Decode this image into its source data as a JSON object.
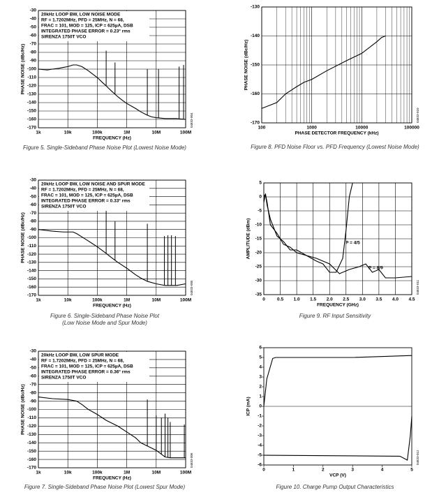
{
  "chart_data": [
    {
      "type": "line",
      "caption": [
        "Figure 5. Single-Sideband Phase Noise Plot (Lowest Noise Mode)"
      ],
      "code": "04833-004",
      "xlabel": "FREQUENCY (Hz)",
      "ylabel": "PHASE NOISE (dBc/Hz)",
      "xscale": "log",
      "grid": true,
      "annotations": [
        "20kHz LOOP BW, LOW NOISE MODE",
        "RF = 1.7202MHz, PFD = 25MHz, N = 68,",
        "FRAC = 101, MOD = 125, ICP = 625µA, DSB",
        "INTEGRATED PHASE ERROR = 0.23° rms",
        "SIRENZA 1750T VCO"
      ],
      "xlim": [
        1000,
        100000000
      ],
      "ylim": [
        -170,
        -30
      ],
      "xticks": [
        {
          "value": 1000,
          "label": "1k"
        },
        {
          "value": 10000,
          "label": "10k"
        },
        {
          "value": 100000,
          "label": "100k"
        },
        {
          "value": 1000000,
          "label": "1M"
        },
        {
          "value": 10000000,
          "label": "10M"
        },
        {
          "value": 100000000,
          "label": "100M"
        }
      ],
      "yticks": [
        -30,
        -40,
        -50,
        -60,
        -70,
        -80,
        -90,
        -100,
        -110,
        -120,
        -130,
        -140,
        -150,
        -160,
        -170
      ],
      "x": [
        1000,
        2000,
        3000,
        5000,
        7000,
        10000,
        15000,
        20000,
        30000,
        50000,
        70000,
        100000,
        150000,
        200000,
        300000,
        500000,
        700000,
        1000000,
        2000000,
        3000000,
        5000000,
        7000000,
        10000000,
        20000000,
        50000000,
        100000000
      ],
      "series": [
        {
          "color": "#000000",
          "values": [
            -100,
            -101,
            -100,
            -99,
            -98,
            -97,
            -95,
            -95,
            -97,
            -102,
            -106,
            -110,
            -116,
            -120,
            -126,
            -133,
            -137,
            -141,
            -147,
            -151,
            -155,
            -157,
            -158,
            -159,
            -159,
            -160
          ]
        }
      ],
      "spurs": {
        "x": [
          200000,
          400000,
          5000000,
          12000000,
          60000000,
          85000000
        ],
        "values": [
          -78,
          -92,
          -100,
          -100,
          -97,
          -95
        ]
      }
    },
    {
      "type": "line",
      "caption": [
        "Figure 6. Single-Sideband Phase Noise Plot",
        "(Low Noise Mode and Spur Mode)"
      ],
      "code": "04833-005",
      "xlabel": "FREQUENCY (Hz)",
      "ylabel": "PHASE NOISE (dBc/Hz)",
      "xscale": "log",
      "grid": true,
      "annotations": [
        "20kHz LOOP BW, LOW NOISE AND SPUR MODE",
        "RF = 1.7202MHz, PFD = 25MHz, N = 68,",
        "FRAC = 101, MOD = 125, ICP = 625µA, DSB",
        "INTEGRATED PHASE ERROR = 0.33° rms",
        "SIRENZA 1750T VCO"
      ],
      "xlim": [
        1000,
        100000000
      ],
      "ylim": [
        -170,
        -30
      ],
      "xticks": [
        {
          "value": 1000,
          "label": "1k"
        },
        {
          "value": 10000,
          "label": "10k"
        },
        {
          "value": 100000,
          "label": "100k"
        },
        {
          "value": 1000000,
          "label": "1M"
        },
        {
          "value": 10000000,
          "label": "10M"
        },
        {
          "value": 100000000,
          "label": "100M"
        }
      ],
      "yticks": [
        -30,
        -40,
        -50,
        -60,
        -70,
        -80,
        -90,
        -100,
        -110,
        -120,
        -130,
        -140,
        -150,
        -160,
        -170
      ],
      "x": [
        1000,
        3000,
        7000,
        10000,
        15000,
        20000,
        30000,
        50000,
        100000,
        200000,
        300000,
        500000,
        1000000,
        2000000,
        3000000,
        5000000,
        10000000,
        20000000,
        50000000,
        100000000
      ],
      "series": [
        {
          "color": "#000000",
          "values": [
            -90,
            -92,
            -93,
            -93,
            -93,
            -95,
            -99,
            -104,
            -111,
            -119,
            -124,
            -130,
            -137,
            -145,
            -149,
            -153,
            -156,
            -158,
            -158,
            -156
          ]
        }
      ],
      "spurs": {
        "x": [
          200000,
          400000,
          5000000,
          19000000,
          25000000,
          33000000,
          45000000
        ],
        "values": [
          -63,
          -80,
          -83,
          -98,
          -97,
          -97,
          -98
        ]
      }
    },
    {
      "type": "line",
      "caption": [
        "Figure 7. Single-Sideband Phase Noise Plot (Lowest Spur Mode)"
      ],
      "code": "04833-006",
      "xlabel": "FREQUENCY (Hz)",
      "ylabel": "PHASE NOISE (dBc/Hz)",
      "xscale": "log",
      "grid": true,
      "annotations": [
        "20kHz LOOP BW, LOW SPUR MODE",
        "RF = 1.7202MHz, PFD = 25MHz, N = 68,",
        "FRAC = 101, MOD = 125, ICP = 625µA, DSB",
        "INTEGRATED PHASE ERROR = 0.36° rms",
        "SIRENZA 1750T VCO"
      ],
      "xlim": [
        1000,
        100000000
      ],
      "ylim": [
        -170,
        -30
      ],
      "xticks": [
        {
          "value": 1000,
          "label": "1k"
        },
        {
          "value": 10000,
          "label": "10k"
        },
        {
          "value": 100000,
          "label": "100k"
        },
        {
          "value": 1000000,
          "label": "1M"
        },
        {
          "value": 10000000,
          "label": "10M"
        },
        {
          "value": 100000000,
          "label": "100M"
        }
      ],
      "yticks": [
        -30,
        -40,
        -50,
        -60,
        -70,
        -80,
        -90,
        -100,
        -110,
        -120,
        -130,
        -140,
        -150,
        -160,
        -170
      ],
      "x": [
        1000,
        3000,
        10000,
        20000,
        30000,
        50000,
        100000,
        200000,
        500000,
        1000000,
        2000000,
        3000000,
        10000000,
        20000000,
        30000000,
        100000000
      ],
      "series": [
        {
          "color": "#000000",
          "values": [
            -85,
            -87,
            -88,
            -90,
            -94,
            -100,
            -106,
            -113,
            -120,
            -127,
            -134,
            -140,
            -149,
            -157,
            -158,
            -158
          ]
        }
      ],
      "spurs": {
        "x": [
          5000000,
          10000000,
          15000000,
          20000000,
          25000000,
          30000000,
          90000000
        ],
        "values": [
          -88,
          -107,
          -110,
          -105,
          -110,
          -115,
          -118
        ]
      }
    },
    {
      "type": "line",
      "caption": [
        "Figure 8. PFD Noise Floor vs. PFD Frequency (Lowest Noise Mode)"
      ],
      "code": "04833-010",
      "xlabel": "PHASE DETECTOR FREQUENCY (kHz)",
      "ylabel": "PHASE NOISE (dBc/Hz)",
      "xscale": "log",
      "grid": true,
      "minor_grid": true,
      "xlim": [
        100,
        100000
      ],
      "ylim": [
        -170,
        -130
      ],
      "xticks": [
        100,
        1000,
        10000,
        100000
      ],
      "yticks": [
        -130,
        -140,
        -150,
        -160,
        -170
      ],
      "x": [
        100,
        200,
        300,
        500,
        700,
        1000,
        2000,
        5000,
        10000,
        20000,
        25000,
        30000
      ],
      "series": [
        {
          "color": "#000000",
          "values": [
            -165,
            -163,
            -160,
            -157.5,
            -156,
            -155,
            -152,
            -148.5,
            -146,
            -142,
            -140.5,
            -140
          ]
        }
      ]
    },
    {
      "type": "line",
      "caption": [
        "Figure 9. RF Input Sensitivity"
      ],
      "code": "04833-011",
      "xlabel": "FREQUENCY (GHz)",
      "ylabel": "AMPLITUDE (dBm)",
      "grid": true,
      "xlim": [
        0,
        4.5
      ],
      "ylim": [
        -35,
        5
      ],
      "xticks": [
        0,
        0.5,
        {
          "value": 1,
          "label": "1.0"
        },
        1.5,
        {
          "value": 2,
          "label": "2.0"
        },
        2.5,
        {
          "value": 3,
          "label": "3.0"
        },
        3.5,
        {
          "value": 4,
          "label": "4.0"
        },
        4.5
      ],
      "yticks": [
        5,
        0,
        -5,
        -10,
        -15,
        -20,
        -25,
        -30,
        -35
      ],
      "series": [
        {
          "name": "P = 4/5",
          "color": "#000000",
          "x": [
            0,
            0.05,
            0.1,
            0.2,
            0.4,
            0.6,
            0.8,
            1.0,
            1.3,
            1.6,
            1.8,
            2.0,
            2.2,
            2.4,
            2.5,
            2.6,
            2.7
          ],
          "values": [
            -2,
            1,
            -2,
            -10,
            -13,
            -17,
            -18,
            -20,
            -21,
            -23,
            -24,
            -27,
            -27,
            -22,
            -12,
            0,
            5
          ]
        },
        {
          "name": "P = 8/9",
          "color": "#000000",
          "x": [
            0,
            0.05,
            0.1,
            0.2,
            0.4,
            0.6,
            0.8,
            1.0,
            1.3,
            1.6,
            2.0,
            2.3,
            2.6,
            2.9,
            3.1,
            3.3,
            3.5,
            3.7,
            4.0,
            4.5
          ],
          "values": [
            0,
            1,
            -3,
            -8,
            -14,
            -16,
            -19,
            -19,
            -21,
            -22,
            -24,
            -27.5,
            -26,
            -25,
            -24,
            -27,
            -26,
            -29,
            -29,
            -28.5
          ]
        }
      ]
    },
    {
      "type": "line",
      "caption": [
        "Figure 10. Charge Pump Output Characteristics"
      ],
      "code": "04833-012",
      "xlabel": "VCP (V)",
      "ylabel": "ICP (mA)",
      "grid": false,
      "xlim": [
        0,
        5
      ],
      "ylim": [
        -6,
        6
      ],
      "xticks": [
        0,
        1,
        2,
        3,
        4,
        5
      ],
      "yticks": [
        6,
        5,
        4,
        3,
        2,
        1,
        0,
        -1,
        -2,
        -3,
        -4,
        -5,
        -6
      ],
      "series": [
        {
          "color": "#000000",
          "x": [
            0,
            0.1,
            0.3,
            0.4,
            3,
            5
          ],
          "values": [
            0,
            2.8,
            4.9,
            5,
            5,
            5.2
          ]
        },
        {
          "color": "#000000",
          "x": [
            0,
            4.6,
            4.85,
            4.95,
            5
          ],
          "values": [
            -5,
            -5.1,
            -5.5,
            -3,
            -1
          ]
        }
      ]
    }
  ]
}
